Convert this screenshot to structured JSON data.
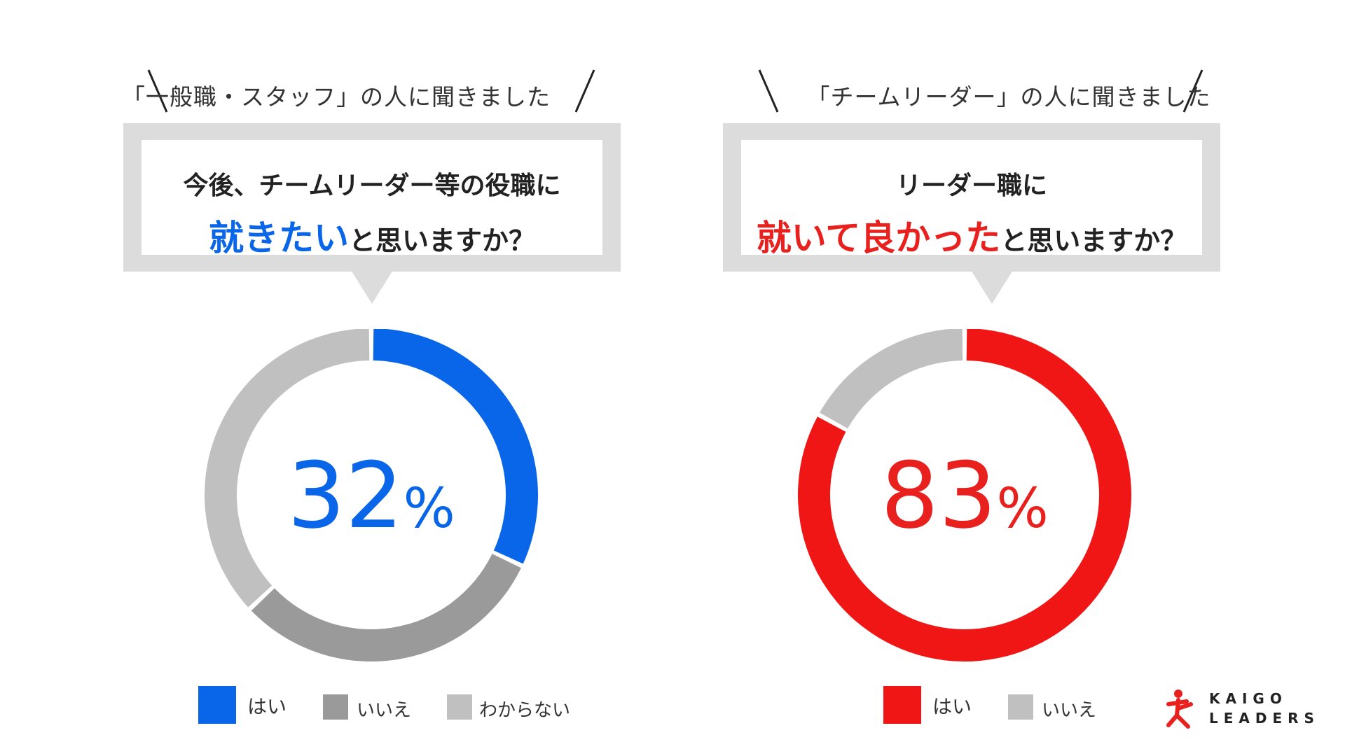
{
  "chart_data": [
    {
      "type": "pie",
      "header": "「一般職・スタッフ」の人に聞きました",
      "question_line1": "今後、チームリーダー等の役職に",
      "question_emphasis": "就きたい",
      "question_rest": "と思いますか？",
      "center_value": "32",
      "center_unit": "%",
      "accent_color": "#0a66e8",
      "categories": [
        "はい",
        "いいえ",
        "わからない"
      ],
      "values": [
        32,
        31,
        37
      ],
      "colors": [
        "#0a66e8",
        "#9a9a9a",
        "#c0c0c0"
      ]
    },
    {
      "type": "pie",
      "header": "「チームリーダー」の人に聞きました",
      "question_line1": "リーダー職に",
      "question_emphasis": "就いて良かった",
      "question_rest": "と思いますか？",
      "center_value": "83",
      "center_unit": "%",
      "accent_color": "#e8201e",
      "categories": [
        "はい",
        "いいえ"
      ],
      "values": [
        83,
        17
      ],
      "colors": [
        "#f01616",
        "#c0c0c0"
      ]
    }
  ],
  "logo": {
    "line1": "KAIGO",
    "line2": "LEADERS",
    "mark_color": "#e8201e"
  }
}
